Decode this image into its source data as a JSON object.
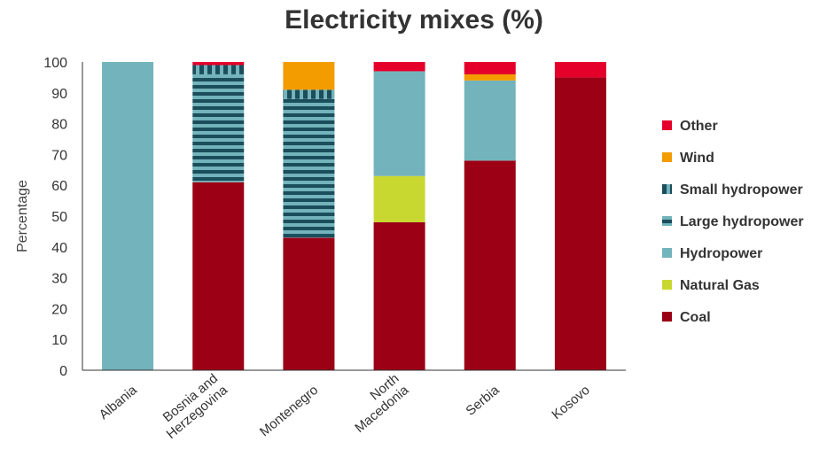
{
  "chart_data": {
    "type": "bar",
    "stacked": true,
    "title": "Electricity mixes (%)",
    "ylabel": "Percentage",
    "xlabel": "",
    "ylim": [
      0,
      100
    ],
    "yticks": [
      0,
      10,
      20,
      30,
      40,
      50,
      60,
      70,
      80,
      90,
      100
    ],
    "categories": [
      [
        "Albania"
      ],
      [
        "Bosnia and",
        "Herzegovina"
      ],
      [
        "Montenegro"
      ],
      [
        "North",
        "Macedonia"
      ],
      [
        "Serbia"
      ],
      [
        "Kosovo"
      ]
    ],
    "series": [
      {
        "name": "Coal",
        "color": "#9b0014",
        "pattern": "solid",
        "values": [
          0,
          61,
          43,
          48,
          68,
          95
        ]
      },
      {
        "name": "Natural Gas",
        "color": "#c9d731",
        "pattern": "solid",
        "values": [
          0,
          0,
          0,
          15,
          0,
          0
        ]
      },
      {
        "name": "Hydropower",
        "color": "#73b3bb",
        "pattern": "solid",
        "values": [
          100,
          0,
          0,
          34,
          26,
          0
        ]
      },
      {
        "name": "Large hydropower",
        "color": "#73b3bb",
        "pattern": "hstripes",
        "values": [
          0,
          35,
          45,
          0,
          0,
          0
        ]
      },
      {
        "name": "Small hydropower",
        "color": "#73b3bb",
        "pattern": "vstripes",
        "values": [
          0,
          3,
          3,
          0,
          0,
          0
        ]
      },
      {
        "name": "Wind",
        "color": "#f39c00",
        "pattern": "solid",
        "values": [
          0,
          0,
          9,
          0,
          2,
          0
        ]
      },
      {
        "name": "Other",
        "color": "#e5002b",
        "pattern": "solid",
        "values": [
          0,
          1,
          0,
          3,
          4,
          5
        ]
      }
    ],
    "grid": false,
    "legend_position": "right"
  }
}
